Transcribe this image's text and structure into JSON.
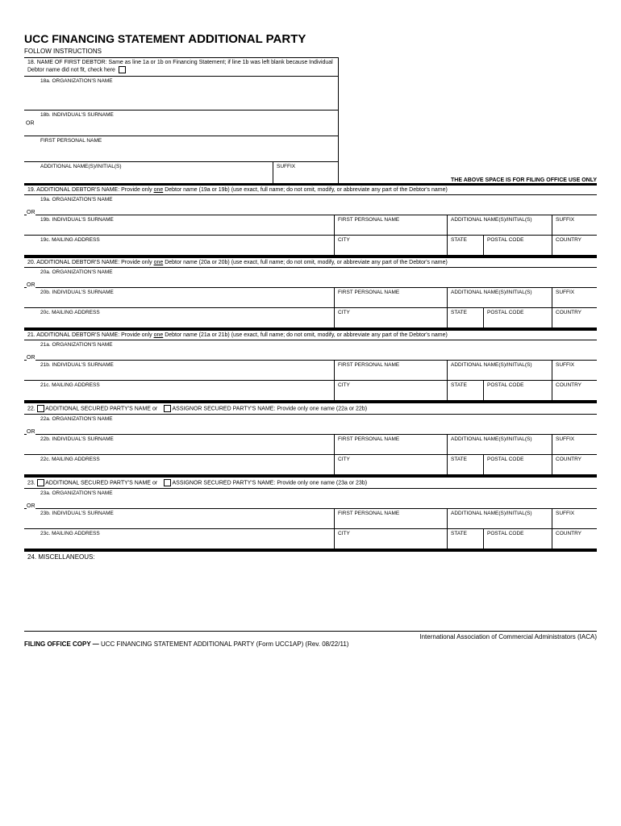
{
  "title_prefix": "UCC FINANCING STATEMENT ",
  "title_bold": "ADDITIONAL PARTY",
  "subtitle": "FOLLOW INSTRUCTIONS",
  "section18": {
    "header_num": "18.",
    "header_label": "NAME OF FIRST DEBTOR:",
    "header_text": " Same as line 1a or 1b on Financing Statement; if line 1b was left blank because Individual Debtor name did not fit, check here",
    "a_label": "18a. ORGANIZATION'S NAME",
    "b_label": "18b. INDIVIDUAL'S SURNAME",
    "first_label": "FIRST PERSONAL NAME",
    "addl_label": "ADDITIONAL NAME(S)/INITIAL(S)",
    "suffix_label": "SUFFIX"
  },
  "filing_space_note": "THE ABOVE SPACE IS FOR FILING OFFICE USE ONLY",
  "or_label": "OR",
  "debtor_sections": [
    {
      "num": "19.",
      "title": "ADDITIONAL DEBTOR'S NAME:",
      "instr": " Provide only ",
      "instr_und": "one",
      "instr2": " Debtor name (19a or 19b) (use exact, full name; do not omit, modify, or abbreviate any part of the Debtor's name)",
      "a": "19a. ORGANIZATION'S NAME",
      "b": "19b. INDIVIDUAL'S SURNAME",
      "c": "19c. MAILING ADDRESS"
    },
    {
      "num": "20.",
      "title": "ADDITIONAL DEBTOR'S NAME:",
      "instr": " Provide only ",
      "instr_und": "one",
      "instr2": " Debtor name (20a or 20b) (use exact, full name; do not omit, modify, or abbreviate any part of the Debtor's name)",
      "a": "20a. ORGANIZATION'S NAME",
      "b": "20b. INDIVIDUAL'S SURNAME",
      "c": "20c. MAILING ADDRESS"
    },
    {
      "num": "21.",
      "title": "ADDITIONAL DEBTOR'S NAME:",
      "instr": " Provide only ",
      "instr_und": "one",
      "instr2": " Debtor name (21a or 21b) (use exact, full name; do not omit, modify, or abbreviate any part of the Debtor's name)",
      "a": "21a. ORGANIZATION'S NAME",
      "b": "21b. INDIVIDUAL'S SURNAME",
      "c": "21c. MAILING ADDRESS"
    }
  ],
  "party_sections": [
    {
      "num": "22.",
      "opt1": "ADDITIONAL SECURED PARTY'S NAME",
      "or": "or",
      "opt2": "ASSIGNOR SECURED PARTY'S NAME:",
      "instr": " Provide only ",
      "instr_und": "one",
      "instr2": " name (22a or 22b)",
      "a": "22a. ORGANIZATION'S NAME",
      "b": "22b. INDIVIDUAL'S SURNAME",
      "c": "22c. MAILING ADDRESS"
    },
    {
      "num": "23.",
      "opt1": "ADDITIONAL SECURED PARTY'S NAME",
      "or": "or",
      "opt2": "ASSIGNOR SECURED PARTY'S NAME:",
      "instr": " Provide only ",
      "instr_und": "one",
      "instr2": " name (23a or 23b)",
      "a": "23a. ORGANIZATION'S NAME",
      "b": "23b. INDIVIDUAL'S SURNAME",
      "c": "23c. MAILING ADDRESS"
    }
  ],
  "col_labels": {
    "first": "FIRST PERSONAL NAME",
    "addl": "ADDITIONAL NAME(S)/INITIAL(S)",
    "suffix": "SUFFIX",
    "city": "CITY",
    "state": "STATE",
    "postal": "POSTAL CODE",
    "country": "COUNTRY"
  },
  "misc_label": "24. MISCELLANEOUS:",
  "footer_org": "International Association of Commercial Administrators (IACA)",
  "footer_copy_bold": "FILING OFFICE COPY — ",
  "footer_copy_rest": "UCC FINANCING STATEMENT ADDITIONAL PARTY (Form UCC1AP) (Rev. 08/22/11)"
}
